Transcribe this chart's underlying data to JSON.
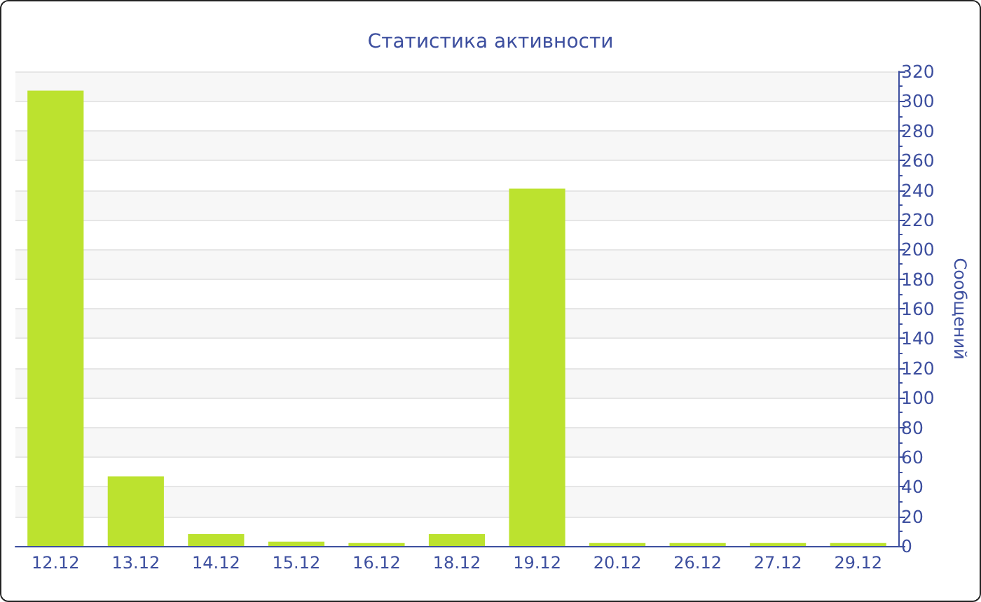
{
  "chart_data": {
    "type": "bar",
    "title": "Статистика активности",
    "ylabel": "Сообщений",
    "categories": [
      "12.12",
      "13.12",
      "14.12",
      "15.12",
      "16.12",
      "18.12",
      "19.12",
      "20.12",
      "26.12",
      "27.12",
      "29.12"
    ],
    "values": [
      307,
      47,
      8,
      3,
      2,
      8,
      241,
      2,
      2,
      2,
      2
    ],
    "color": "#bce22f",
    "ylim": [
      0,
      320
    ],
    "yticks": [
      0,
      {
        "value": 10,
        "label": null
      },
      20,
      {
        "value": 30,
        "label": null
      },
      40,
      {
        "value": 50,
        "label": null
      },
      60,
      {
        "value": 70,
        "label": null
      },
      80,
      {
        "value": 90,
        "label": null
      },
      100,
      {
        "value": 110,
        "label": null
      },
      120,
      {
        "value": 130,
        "label": null
      },
      140,
      {
        "value": 150,
        "label": null
      },
      160,
      {
        "value": 170,
        "label": null
      },
      180,
      {
        "value": 190,
        "label": null
      },
      200,
      {
        "value": 210,
        "label": null
      },
      220,
      {
        "value": 230,
        "label": null
      },
      240,
      {
        "value": 250,
        "label": null
      },
      260,
      {
        "value": 270,
        "label": null
      },
      280,
      {
        "value": 290,
        "label": null
      },
      300,
      {
        "value": 310,
        "label": null
      },
      320
    ],
    "grid": "y"
  }
}
